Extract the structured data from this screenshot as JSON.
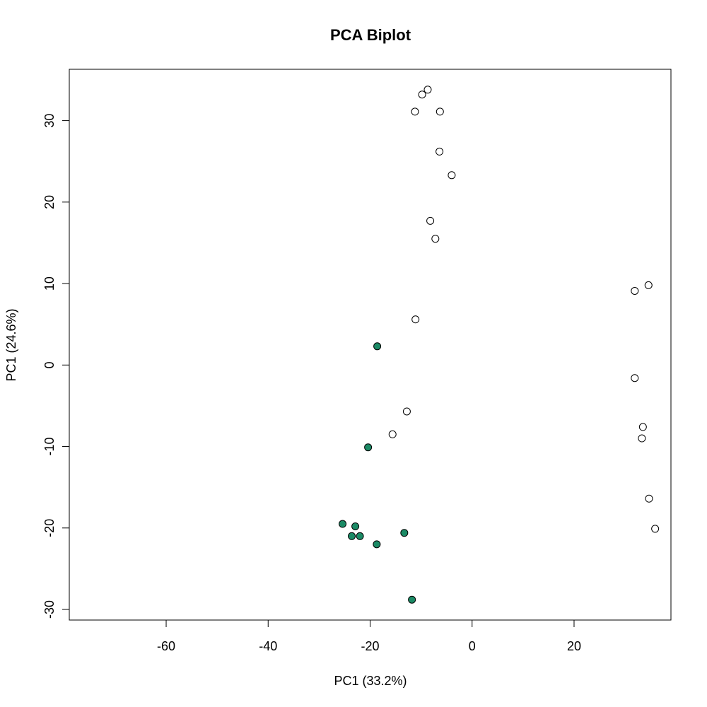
{
  "chart_data": {
    "type": "scatter",
    "title": "PCA Biplot",
    "xlabel": "PC1 (33.2%)",
    "ylabel": "PC1 (24.6%)",
    "xlim": [
      -79,
      39
    ],
    "ylim": [
      -31.3,
      36.3
    ],
    "xticks": [
      -60,
      -40,
      -20,
      0,
      20
    ],
    "yticks": [
      -30,
      -20,
      -10,
      0,
      10,
      20,
      30
    ],
    "grid": false,
    "legend": "none",
    "series": [
      {
        "color": "#ffffff",
        "points": [
          {
            "x": -8.7,
            "y": 33.8
          },
          {
            "x": -9.8,
            "y": 33.2
          },
          {
            "x": -11.2,
            "y": 31.1
          },
          {
            "x": -6.3,
            "y": 31.1
          },
          {
            "x": -6.4,
            "y": 26.2
          },
          {
            "x": -4.0,
            "y": 23.3
          },
          {
            "x": -8.2,
            "y": 17.7
          },
          {
            "x": -7.2,
            "y": 15.5
          },
          {
            "x": 31.9,
            "y": 9.1
          },
          {
            "x": 34.6,
            "y": 9.8
          },
          {
            "x": -11.1,
            "y": 5.6
          },
          {
            "x": 31.9,
            "y": -1.6
          },
          {
            "x": -12.8,
            "y": -5.7
          },
          {
            "x": -15.6,
            "y": -8.5
          },
          {
            "x": 33.5,
            "y": -7.6
          },
          {
            "x": 33.3,
            "y": -9.0
          },
          {
            "x": 34.7,
            "y": -16.4
          },
          {
            "x": 35.9,
            "y": -20.1
          }
        ]
      },
      {
        "color": "#1b8a65",
        "points": [
          {
            "x": -18.6,
            "y": 2.3
          },
          {
            "x": -20.4,
            "y": -10.1
          },
          {
            "x": -25.4,
            "y": -19.5
          },
          {
            "x": -22.9,
            "y": -19.8
          },
          {
            "x": -23.6,
            "y": -21.0
          },
          {
            "x": -22.0,
            "y": -21.0
          },
          {
            "x": -18.7,
            "y": -22.0
          },
          {
            "x": -13.3,
            "y": -20.6
          },
          {
            "x": -11.8,
            "y": -28.8
          }
        ]
      }
    ]
  }
}
